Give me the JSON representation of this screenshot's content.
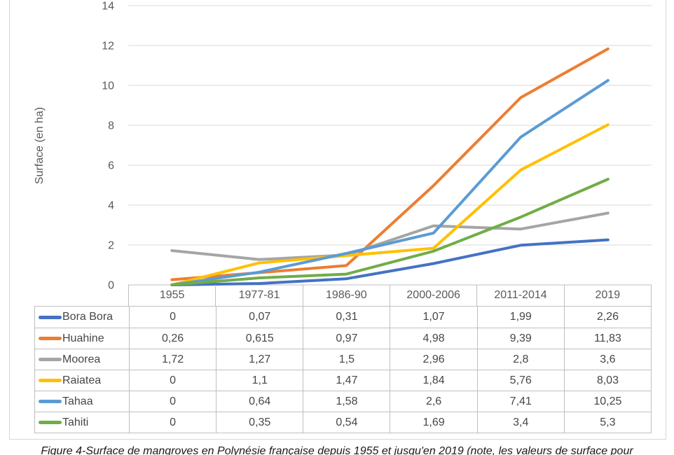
{
  "figure": {
    "caption": "Figure 4-Surface de mangroves en Polynésie française depuis 1955 et jusqu'en 2019 (note, les valeurs de surface pour"
  },
  "chart_data": {
    "type": "line",
    "title": "",
    "xlabel": "",
    "ylabel": "Surface (en ha)",
    "ylim": [
      0,
      14
    ],
    "yticks": [
      0,
      2,
      4,
      6,
      8,
      10,
      12,
      14
    ],
    "grid": true,
    "legend_position": "data-table-left",
    "categories": [
      "1955",
      "1977-81",
      "1986-90",
      "2000-2006",
      "2011-2014",
      "2019"
    ],
    "series": [
      {
        "name": "Bora Bora",
        "color": "#4472C4",
        "values": [
          0,
          0.07,
          0.31,
          1.07,
          1.99,
          2.26
        ],
        "display_values": [
          "0",
          "0,07",
          "0,31",
          "1,07",
          "1,99",
          "2,26"
        ]
      },
      {
        "name": "Huahine",
        "color": "#ED7D31",
        "values": [
          0.26,
          0.615,
          0.97,
          4.98,
          9.39,
          11.83
        ],
        "display_values": [
          "0,26",
          "0,615",
          "0,97",
          "4,98",
          "9,39",
          "11,83"
        ]
      },
      {
        "name": "Moorea",
        "color": "#A5A5A5",
        "values": [
          1.72,
          1.27,
          1.5,
          2.96,
          2.8,
          3.6
        ],
        "display_values": [
          "1,72",
          "1,27",
          "1,5",
          "2,96",
          "2,8",
          "3,6"
        ]
      },
      {
        "name": "Raiatea",
        "color": "#FFC000",
        "values": [
          0,
          1.1,
          1.47,
          1.84,
          5.76,
          8.03
        ],
        "display_values": [
          "0",
          "1,1",
          "1,47",
          "1,84",
          "5,76",
          "8,03"
        ]
      },
      {
        "name": "Tahaa",
        "color": "#5B9BD5",
        "values": [
          0,
          0.64,
          1.58,
          2.6,
          7.41,
          10.25
        ],
        "display_values": [
          "0",
          "0,64",
          "1,58",
          "2,6",
          "7,41",
          "10,25"
        ]
      },
      {
        "name": "Tahiti",
        "color": "#70AD47",
        "values": [
          0,
          0.35,
          0.54,
          1.69,
          3.4,
          5.3
        ],
        "display_values": [
          "0",
          "0,35",
          "0,54",
          "1,69",
          "3,4",
          "5,3"
        ]
      }
    ],
    "colors": {
      "gridline": "#d9d9d9",
      "axis_line": "#bfbfbf",
      "table_border": "#bfbfbf",
      "axis_text": "#595959",
      "table_text": "#464646"
    }
  }
}
